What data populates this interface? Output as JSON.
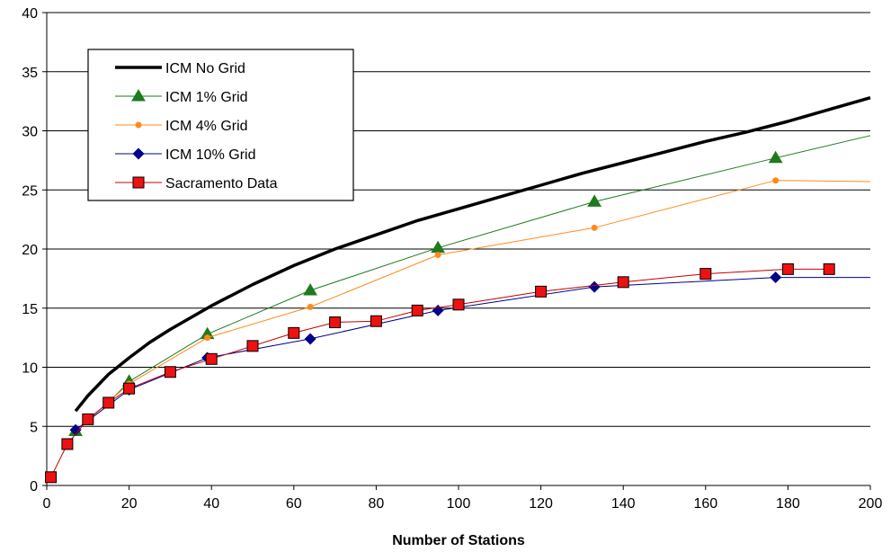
{
  "chart_data": {
    "type": "line",
    "title": "",
    "xlabel": "Number of Stations",
    "ylabel": "",
    "xlim": [
      0,
      200
    ],
    "ylim": [
      0,
      40
    ],
    "xticks": [
      "0",
      "20",
      "40",
      "60",
      "80",
      "100",
      "120",
      "140",
      "160",
      "180",
      "200"
    ],
    "yticks": [
      "0",
      "5",
      "10",
      "15",
      "20",
      "25",
      "30",
      "35",
      "40"
    ],
    "grid": "horizontal",
    "legend_position": "top-left",
    "series": [
      {
        "name": "ICM No Grid",
        "color": "#000000",
        "marker": "none",
        "x": [
          7,
          10,
          15,
          20,
          25,
          30,
          40,
          50,
          60,
          70,
          80,
          90,
          100,
          110,
          120,
          130,
          140,
          150,
          160,
          170,
          180,
          190,
          200
        ],
        "y": [
          6.3,
          7.6,
          9.4,
          10.8,
          12.1,
          13.2,
          15.2,
          17.0,
          18.6,
          20.0,
          21.2,
          22.4,
          23.4,
          24.4,
          25.4,
          26.4,
          27.3,
          28.2,
          29.1,
          29.9,
          30.8,
          31.8,
          32.8
        ]
      },
      {
        "name": "ICM 1% Grid",
        "color": "#1e7a1e",
        "marker": "triangle",
        "x": [
          7,
          10,
          15,
          20,
          39,
          64,
          95,
          133,
          177,
          200
        ],
        "y": [
          4.6,
          5.6,
          7.0,
          8.8,
          12.8,
          16.5,
          20.1,
          24.0,
          27.7,
          29.6
        ],
        "markers_at": [
          7,
          20,
          39,
          64,
          95,
          133,
          177
        ]
      },
      {
        "name": "ICM 4% Grid",
        "color": "#ff8a1a",
        "marker": "circle",
        "x": [
          7,
          20,
          39,
          64,
          95,
          133,
          177,
          200
        ],
        "y": [
          4.6,
          8.6,
          12.5,
          15.1,
          19.5,
          21.8,
          25.8,
          25.7
        ],
        "markers_at": [
          7,
          20,
          39,
          64,
          95,
          133,
          177
        ]
      },
      {
        "name": "ICM 10% Grid",
        "color": "#00008b",
        "marker": "diamond",
        "x": [
          7,
          20,
          39,
          64,
          95,
          133,
          177,
          200
        ],
        "y": [
          4.7,
          8.1,
          10.8,
          12.4,
          14.8,
          16.8,
          17.6,
          17.6
        ],
        "markers_at": [
          7,
          20,
          39,
          64,
          95,
          133,
          177
        ]
      },
      {
        "name": "Sacramento Data",
        "color": "#c00000",
        "fill": "#ee1111",
        "marker": "square",
        "x": [
          1,
          5,
          10,
          15,
          20,
          30,
          40,
          50,
          60,
          70,
          80,
          90,
          100,
          120,
          140,
          160,
          180,
          190
        ],
        "y": [
          0.7,
          3.5,
          5.6,
          7.0,
          8.2,
          9.6,
          10.7,
          11.8,
          12.9,
          13.8,
          13.9,
          14.8,
          15.3,
          16.4,
          17.2,
          17.9,
          18.3,
          18.3
        ],
        "markers_at": [
          1,
          5,
          10,
          15,
          20,
          30,
          40,
          50,
          60,
          70,
          80,
          90,
          100,
          120,
          140,
          160,
          180,
          190
        ]
      }
    ]
  }
}
